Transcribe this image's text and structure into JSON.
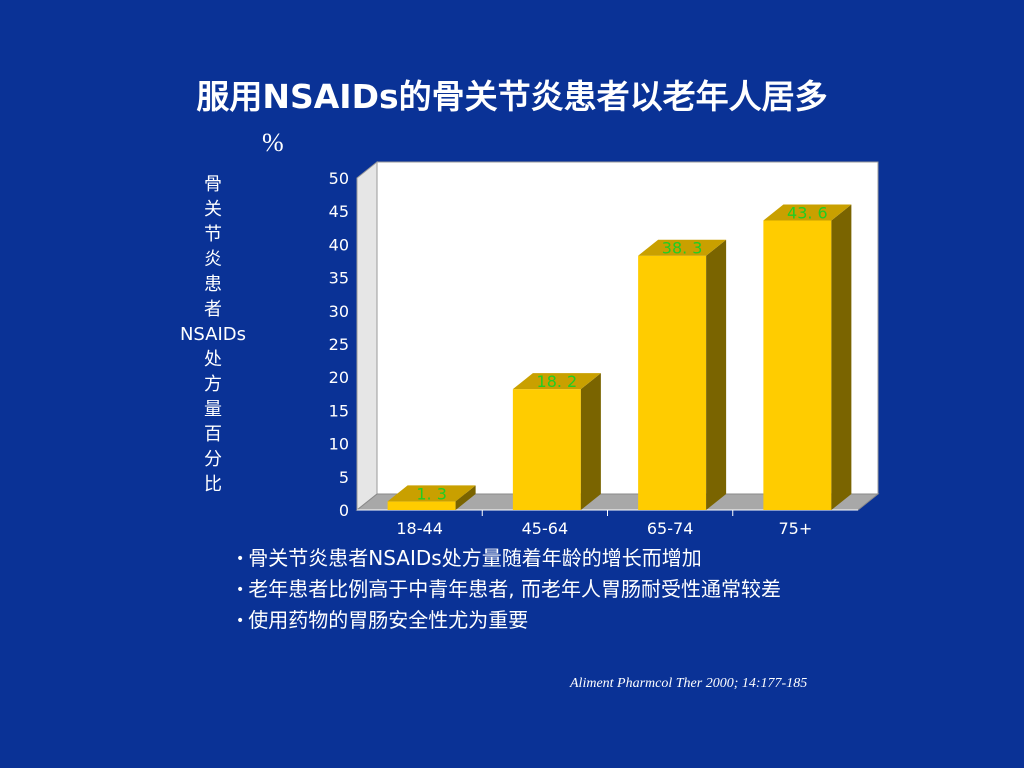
{
  "slide": {
    "title": "服用NSAIDs的骨关节炎患者以老年人居多",
    "unit": "%",
    "ylabel_chars": [
      "骨",
      "关",
      "节",
      "炎",
      "患",
      "者",
      "NSAIDs",
      "处",
      "方",
      "量",
      "百",
      "分",
      "比"
    ],
    "bullets": [
      "骨关节炎患者NSAIDs处方量随着年龄的增长而增加",
      "老年患者比例高于中青年患者, 而老年人胃肠耐受性通常较差",
      "使用药物的胃肠安全性尤为重要"
    ],
    "citation": "Aliment Pharmcol Ther 2000; 14:177-185"
  },
  "chart_data": {
    "type": "bar",
    "categories": [
      "18-44",
      "45-64",
      "65-74",
      "75+"
    ],
    "values": [
      1.3,
      18.2,
      38.3,
      43.6
    ],
    "value_labels": [
      "1. 3",
      "18. 2",
      "38. 3",
      "43. 6"
    ],
    "ylabel": "骨关节炎患者NSAIDs处方量百分比",
    "ylim": [
      0,
      50
    ],
    "yticks": [
      "0",
      "5",
      "10",
      "15",
      "20",
      "25",
      "30",
      "35",
      "40",
      "45",
      "50"
    ],
    "grid": false,
    "bar_color": "#ffcc00",
    "bar_side_color": "#7a6400",
    "bar_top_color": "#c9a000",
    "label_color": "#22cc22"
  }
}
